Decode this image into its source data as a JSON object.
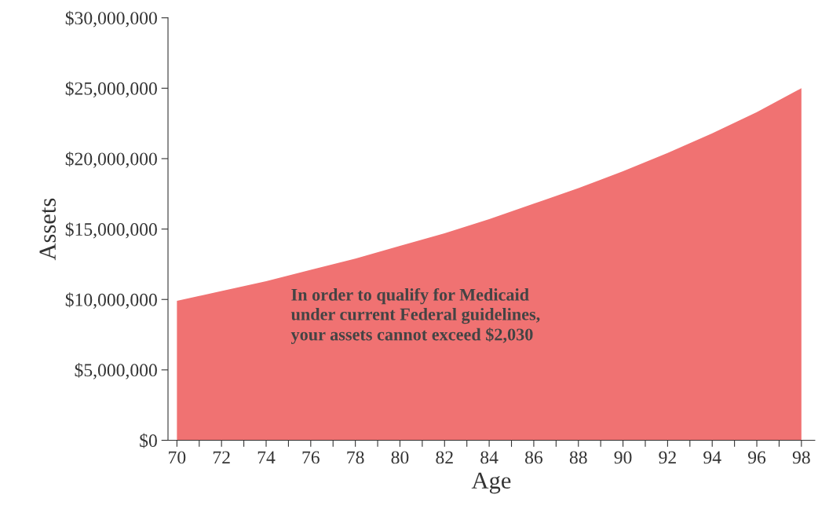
{
  "chart_data": {
    "type": "area",
    "xlabel": "Age",
    "ylabel": "Assets",
    "x": [
      70,
      72,
      74,
      76,
      78,
      80,
      82,
      84,
      86,
      88,
      90,
      92,
      94,
      96,
      98
    ],
    "series": [
      {
        "color": "#f07272",
        "values": [
          9900000,
          10600000,
          11300000,
          12100000,
          12900000,
          13800000,
          14700000,
          15700000,
          16800000,
          17900000,
          19100000,
          20400000,
          21800000,
          23300000,
          25000000
        ]
      }
    ],
    "xlim": [
      69.6,
      98.6
    ],
    "xticks": [
      70,
      {
        "value": 71,
        "label": null
      },
      72,
      {
        "value": 73,
        "label": null
      },
      74,
      {
        "value": 75,
        "label": null
      },
      76,
      {
        "value": 77,
        "label": null
      },
      78,
      {
        "value": 79,
        "label": null
      },
      80,
      {
        "value": 81,
        "label": null
      },
      82,
      {
        "value": 83,
        "label": null
      },
      84,
      {
        "value": 85,
        "label": null
      },
      86,
      {
        "value": 87,
        "label": null
      },
      88,
      {
        "value": 89,
        "label": null
      },
      90,
      {
        "value": 91,
        "label": null
      },
      92,
      {
        "value": 93,
        "label": null
      },
      94,
      {
        "value": 95,
        "label": null
      },
      96,
      {
        "value": 97,
        "label": null
      },
      98
    ],
    "ylim": [
      0,
      30000000
    ],
    "yticks": [
      {
        "value": 0,
        "label": "$0"
      },
      {
        "value": 5000000,
        "label": "$5,000,000"
      },
      {
        "value": 10000000,
        "label": "$10,000,000"
      },
      {
        "value": 15000000,
        "label": "$15,000,000"
      },
      {
        "value": 20000000,
        "label": "$20,000,000"
      },
      {
        "value": 25000000,
        "label": "$25,000,000"
      },
      {
        "value": 30000000,
        "label": "$30,000,000"
      }
    ],
    "annotations": [
      "In order to qualify for Medicaid\nunder current Federal guidelines,\nyour assets cannot exceed $2,030"
    ]
  }
}
